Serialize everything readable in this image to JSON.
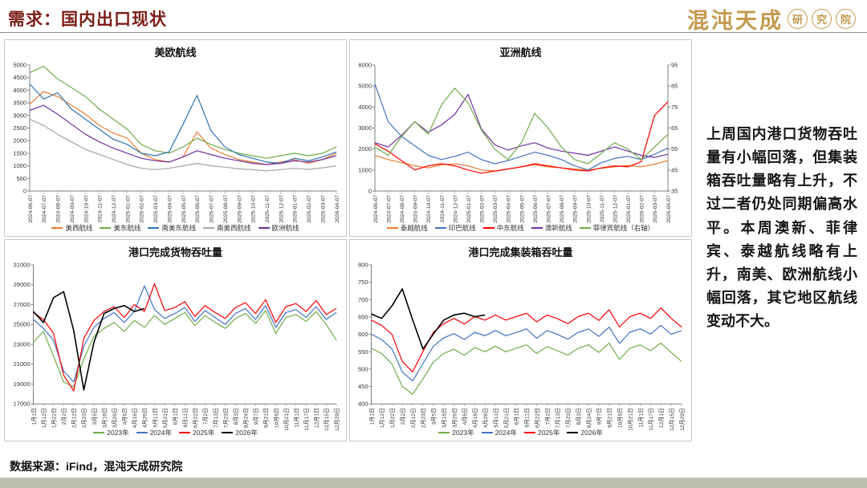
{
  "header": {
    "title": "需求：国内出口现状",
    "logo_text": "混沌天成",
    "logo_suffix": [
      "研",
      "究",
      "院"
    ]
  },
  "colors": {
    "accent_title": "#7B1D17",
    "logo_gold": "#C49A4F",
    "bottom_bar": "#BCBFAE",
    "border": "#C9C9C9"
  },
  "commentary": {
    "text": "上周国内港口货物吞吐量有小幅回落，但集装箱吞吐量略有上升，不过二者仍处同期偏高水平。本周澳新、菲律宾、泰越航线略有上升，南美、欧洲航线小幅回落，其它地区航线变动不大。"
  },
  "footer": {
    "source": "数据来源：iFind，混沌天成研究院"
  },
  "chart_data": [
    {
      "type": "line",
      "title": "美欧航线",
      "ylim": [
        0,
        5000
      ],
      "ystep": 500,
      "grid": false,
      "legend_position": "bottom",
      "categories": [
        "2024-06-07",
        "2024-07-07",
        "2024-08-07",
        "2024-09-07",
        "2024-10-07",
        "2024-11-07",
        "2024-12-07",
        "2025-01-07",
        "2025-02-07",
        "2025-03-07",
        "2025-04-07",
        "2025-05-07",
        "2025-06-07",
        "2025-07-07",
        "2025-08-07",
        "2025-09-07",
        "2025-10-07",
        "2025-11-07",
        "2025-12-07",
        "2026-01-07",
        "2026-02-07",
        "2026-03-07",
        "2026-04-07"
      ],
      "series": [
        {
          "name": "美西航线",
          "color": "#ED7D31",
          "values": [
            3450,
            3950,
            3750,
            3400,
            3050,
            2600,
            2300,
            2100,
            1500,
            1250,
            1150,
            1350,
            2350,
            1700,
            1450,
            1250,
            1150,
            1050,
            1150,
            1250,
            1100,
            1250,
            1500
          ]
        },
        {
          "name": "美东航线",
          "color": "#70AD47",
          "values": [
            4700,
            4950,
            4450,
            4100,
            3750,
            3250,
            2850,
            2450,
            1850,
            1600,
            1500,
            1750,
            2100,
            1850,
            1650,
            1500,
            1400,
            1300,
            1400,
            1500,
            1400,
            1500,
            1750
          ]
        },
        {
          "name": "南美东航线",
          "color": "#2E75B6",
          "values": [
            4250,
            3650,
            3900,
            3250,
            2850,
            2450,
            2050,
            1850,
            1500,
            1400,
            1550,
            2650,
            3800,
            2400,
            1750,
            1450,
            1300,
            1150,
            1100,
            1300,
            1200,
            1350,
            1550
          ]
        },
        {
          "name": "南美西航线",
          "color": "#A5A5A5",
          "values": [
            2850,
            2600,
            2250,
            1950,
            1650,
            1450,
            1250,
            1050,
            900,
            850,
            900,
            1000,
            1100,
            1000,
            950,
            880,
            850,
            800,
            850,
            900,
            860,
            920,
            1000
          ]
        },
        {
          "name": "欧洲航线",
          "color": "#7030A0",
          "values": [
            3200,
            3400,
            3050,
            2650,
            2250,
            1950,
            1700,
            1500,
            1300,
            1200,
            1150,
            1350,
            1600,
            1450,
            1300,
            1200,
            1100,
            1050,
            1100,
            1200,
            1150,
            1250,
            1400
          ]
        }
      ]
    },
    {
      "type": "line",
      "title": "亚洲航线",
      "ylim": [
        0,
        6000
      ],
      "ystep": 1000,
      "y2lim": [
        35,
        95
      ],
      "y2step": 10,
      "grid": false,
      "legend_position": "bottom",
      "categories": [
        "2024-06-07",
        "2024-07-07",
        "2024-08-07",
        "2024-09-07",
        "2024-10-07",
        "2024-11-07",
        "2024-12-07",
        "2025-01-07",
        "2025-02-07",
        "2025-03-07",
        "2025-04-07",
        "2025-05-07",
        "2025-06-07",
        "2025-07-07",
        "2025-08-07",
        "2025-09-07",
        "2025-10-07",
        "2025-11-07",
        "2025-12-07",
        "2026-01-07",
        "2026-02-07",
        "2026-03-07",
        "2026-04-07"
      ],
      "series": [
        {
          "name": "泰越航线",
          "color": "#ED7D31",
          "values": [
            1700,
            1500,
            1350,
            1200,
            1100,
            1250,
            1300,
            1200,
            1000,
            950,
            1050,
            1150,
            1250,
            1150,
            1100,
            1050,
            1000,
            1080,
            1150,
            1220,
            1150,
            1280,
            1450
          ]
        },
        {
          "name": "印巴航线",
          "color": "#4472C4",
          "values": [
            5100,
            3300,
            2600,
            2150,
            1700,
            1500,
            1650,
            1850,
            1500,
            1300,
            1450,
            1650,
            1850,
            1700,
            1500,
            1200,
            1000,
            1350,
            1550,
            1650,
            1500,
            1750,
            2050
          ]
        },
        {
          "name": "中东航线",
          "color": "#FF0000",
          "values": [
            2250,
            1900,
            1450,
            1000,
            1200,
            1300,
            1200,
            1000,
            850,
            950,
            1050,
            1150,
            1300,
            1200,
            1100,
            1000,
            950,
            1100,
            1200,
            1150,
            1400,
            3600,
            4250
          ]
        },
        {
          "name": "澳新航线",
          "color": "#7030A0",
          "values": [
            2300,
            2100,
            2650,
            3300,
            2800,
            3150,
            3650,
            4600,
            2950,
            2200,
            1950,
            2150,
            2300,
            2050,
            1900,
            1800,
            1700,
            1900,
            2100,
            1900,
            1700,
            1600,
            1750
          ]
        },
        {
          "name": "菲律宾航线（右轴）",
          "color": "#70AD47",
          "axis": "right",
          "values": [
            56,
            52,
            61,
            68,
            62,
            76,
            84,
            77,
            64,
            55,
            50,
            58,
            72,
            65,
            56,
            50,
            48,
            53,
            58,
            55,
            50,
            56,
            62
          ]
        }
      ]
    },
    {
      "type": "line",
      "title": "港口完成货物吞吐量",
      "ylim": [
        17000,
        31000
      ],
      "ystep": 2000,
      "grid": false,
      "legend_position": "bottom",
      "categories": [
        "1月1日",
        "1月12日",
        "1月22日",
        "2月2日",
        "2月12日",
        "2月23日",
        "3月5日",
        "3月16日",
        "3月26日",
        "4月6日",
        "4月16日",
        "4月26日",
        "5月11日",
        "5月21日",
        "6月1日",
        "6月11日",
        "6月22日",
        "7月2日",
        "7月13日",
        "7月23日",
        "8月3日",
        "8月24日",
        "9月7日",
        "9月21日",
        "10月6日",
        "10月21日",
        "11月1日",
        "11月17日",
        "12月1日",
        "12月15日",
        "12月29日"
      ],
      "series": [
        {
          "name": "2023年",
          "color": "#70AD47",
          "values": [
            23200,
            24300,
            21800,
            19200,
            18700,
            21500,
            23800,
            24600,
            25200,
            24300,
            25400,
            24700,
            25900,
            25000,
            25600,
            26200,
            24900,
            25900,
            25200,
            24600,
            25600,
            26100,
            25100,
            26400,
            24100,
            25700,
            26000,
            25300,
            26300,
            25000,
            23400
          ]
        },
        {
          "name": "2024年",
          "color": "#4472C4",
          "values": [
            25500,
            24600,
            23400,
            20300,
            19200,
            22800,
            24700,
            25600,
            26200,
            25200,
            26300,
            28900,
            26500,
            25600,
            26100,
            26700,
            25300,
            26400,
            25700,
            25000,
            26100,
            26600,
            25500,
            26900,
            24700,
            26200,
            26500,
            25700,
            26800,
            25500,
            26200
          ]
        },
        {
          "name": "2025年",
          "color": "#FF0000",
          "values": [
            26200,
            25500,
            24100,
            19900,
            18300,
            23600,
            25400,
            26300,
            26800,
            25700,
            27000,
            26300,
            29100,
            26400,
            26700,
            27300,
            25800,
            26900,
            26200,
            25600,
            26700,
            27200,
            26100,
            27500,
            25200,
            26800,
            27100,
            26300,
            27400,
            26000,
            26600
          ]
        },
        {
          "name": "2026年",
          "color": "#000000",
          "values": [
            26300,
            25200,
            27700,
            28300,
            24400,
            18400,
            23200,
            26100,
            26600,
            26900,
            26300,
            26600
          ]
        }
      ]
    },
    {
      "type": "line",
      "title": "港口完成集装箱吞吐量",
      "ylim": [
        400,
        800
      ],
      "ystep": 50,
      "grid": false,
      "legend_position": "bottom",
      "categories": [
        "1月1日",
        "1月12日",
        "1月22日",
        "2月2日",
        "2月12日",
        "2月23日",
        "3月5日",
        "3月16日",
        "3月26日",
        "4月6日",
        "4月16日",
        "4月26日",
        "5月11日",
        "5月21日",
        "6月1日",
        "6月11日",
        "6月22日",
        "7月2日",
        "7月13日",
        "7月23日",
        "8月3日",
        "8月24日",
        "9月7日",
        "9月21日",
        "10月6日",
        "10月21日",
        "11月1日",
        "11月17日",
        "12月1日",
        "12月15日",
        "12月29日"
      ],
      "series": [
        {
          "name": "2023年",
          "color": "#70AD47",
          "values": [
            560,
            545,
            515,
            450,
            428,
            472,
            520,
            545,
            557,
            540,
            562,
            550,
            566,
            550,
            560,
            570,
            545,
            565,
            553,
            540,
            560,
            570,
            548,
            575,
            528,
            560,
            570,
            553,
            575,
            548,
            522
          ]
        },
        {
          "name": "2024年",
          "color": "#4472C4",
          "values": [
            601,
            585,
            558,
            492,
            466,
            516,
            566,
            590,
            602,
            585,
            606,
            596,
            611,
            596,
            605,
            616,
            589,
            611,
            600,
            586,
            606,
            616,
            594,
            621,
            574,
            606,
            616,
            601,
            626,
            600,
            611
          ]
        },
        {
          "name": "2025年",
          "color": "#FF0000",
          "values": [
            641,
            626,
            600,
            522,
            492,
            551,
            606,
            631,
            646,
            630,
            651,
            641,
            656,
            641,
            651,
            661,
            636,
            656,
            645,
            631,
            651,
            661,
            640,
            671,
            621,
            651,
            661,
            646,
            676,
            646,
            621
          ]
        },
        {
          "name": "2026年",
          "color": "#000000",
          "values": [
            659,
            646,
            682,
            731,
            642,
            558,
            601,
            641,
            656,
            661,
            651,
            656
          ]
        }
      ]
    }
  ]
}
